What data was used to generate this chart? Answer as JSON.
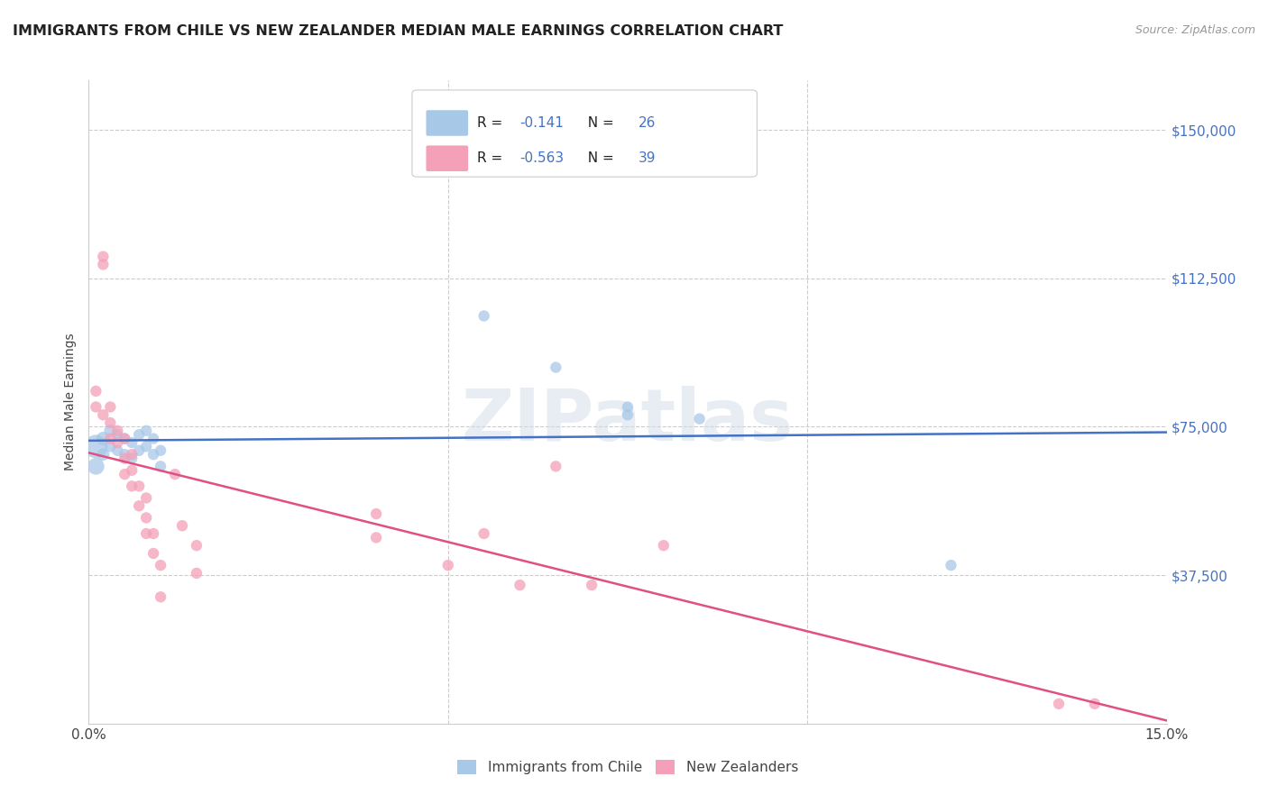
{
  "title": "IMMIGRANTS FROM CHILE VS NEW ZEALANDER MEDIAN MALE EARNINGS CORRELATION CHART",
  "source": "Source: ZipAtlas.com",
  "xlabel_ticks": [
    "0.0%",
    "15.0%"
  ],
  "ylabel_ticks": [
    "$37,500",
    "$75,000",
    "$112,500",
    "$150,000"
  ],
  "ylabel_label": "Median Male Earnings",
  "xlim": [
    0.0,
    0.15
  ],
  "ylim": [
    0,
    162500
  ],
  "ytick_values": [
    37500,
    75000,
    112500,
    150000
  ],
  "xtick_values": [
    0.0,
    0.15
  ],
  "color_blue": "#a8c8e8",
  "color_pink": "#f4a0b8",
  "line_blue": "#4472c4",
  "line_pink": "#e05080",
  "watermark_text": "ZIPatlas",
  "blue_x": [
    0.001,
    0.001,
    0.002,
    0.002,
    0.003,
    0.003,
    0.004,
    0.004,
    0.005,
    0.005,
    0.006,
    0.006,
    0.007,
    0.007,
    0.008,
    0.008,
    0.009,
    0.009,
    0.01,
    0.01,
    0.055,
    0.065,
    0.075,
    0.075,
    0.085,
    0.12
  ],
  "blue_y": [
    70000,
    65000,
    72000,
    68000,
    74000,
    70000,
    73000,
    69000,
    72000,
    68000,
    71000,
    67000,
    73000,
    69000,
    74000,
    70000,
    72000,
    68000,
    69000,
    65000,
    103000,
    90000,
    80000,
    78000,
    77000,
    40000
  ],
  "blue_sizes": [
    350,
    180,
    120,
    100,
    100,
    80,
    80,
    80,
    80,
    80,
    80,
    80,
    80,
    80,
    80,
    80,
    80,
    80,
    80,
    80,
    80,
    80,
    80,
    80,
    80,
    80
  ],
  "pink_x": [
    0.001,
    0.001,
    0.002,
    0.002,
    0.002,
    0.003,
    0.003,
    0.003,
    0.004,
    0.004,
    0.005,
    0.005,
    0.005,
    0.006,
    0.006,
    0.006,
    0.007,
    0.007,
    0.008,
    0.008,
    0.008,
    0.009,
    0.009,
    0.01,
    0.01,
    0.012,
    0.013,
    0.015,
    0.015,
    0.04,
    0.04,
    0.05,
    0.055,
    0.06,
    0.065,
    0.07,
    0.08,
    0.135,
    0.14
  ],
  "pink_y": [
    84000,
    80000,
    118000,
    116000,
    78000,
    80000,
    76000,
    72000,
    74000,
    71000,
    72000,
    67000,
    63000,
    68000,
    64000,
    60000,
    60000,
    55000,
    57000,
    52000,
    48000,
    48000,
    43000,
    40000,
    32000,
    63000,
    50000,
    45000,
    38000,
    53000,
    47000,
    40000,
    48000,
    35000,
    65000,
    35000,
    45000,
    5000,
    5000
  ],
  "pink_sizes": [
    80,
    80,
    80,
    80,
    80,
    80,
    80,
    80,
    80,
    80,
    80,
    80,
    80,
    80,
    80,
    80,
    80,
    80,
    80,
    80,
    80,
    80,
    80,
    80,
    80,
    80,
    80,
    80,
    80,
    80,
    80,
    80,
    80,
    80,
    80,
    80,
    80,
    80,
    80
  ]
}
